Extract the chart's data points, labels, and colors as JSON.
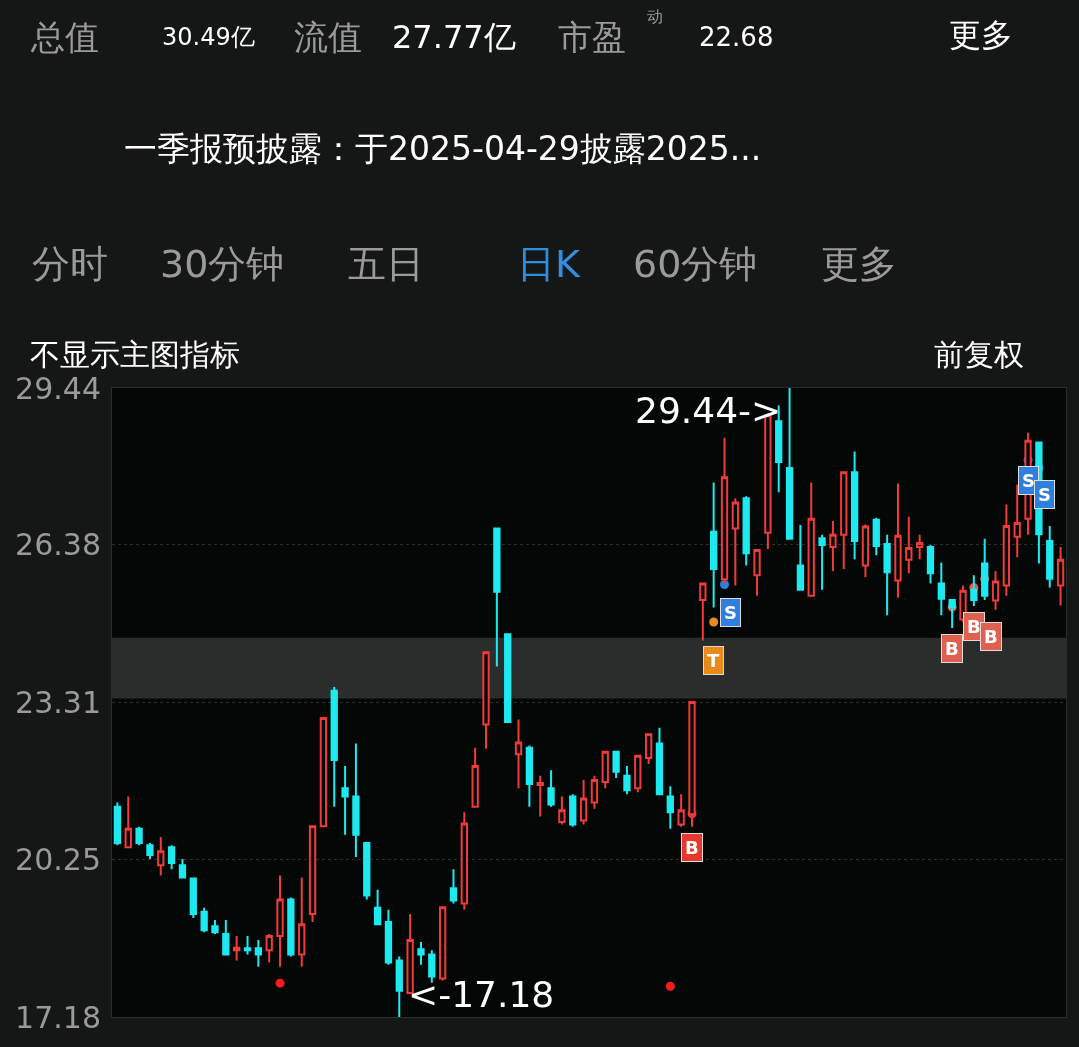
{
  "chart_data": {
    "type": "candlestick",
    "categories": [
      null,
      null,
      null,
      null,
      null,
      null,
      null,
      null,
      null,
      null,
      null,
      null,
      null,
      null,
      null,
      null,
      null,
      null,
      null,
      null,
      null,
      null,
      null,
      null,
      null,
      null,
      null,
      null,
      null,
      null,
      null,
      null,
      null,
      null,
      null,
      null,
      null,
      null,
      null,
      null,
      null,
      null,
      null,
      null,
      null,
      null,
      null,
      null,
      null,
      null,
      null,
      null,
      null,
      null,
      null,
      null,
      null,
      null,
      null,
      null,
      null,
      null,
      null,
      null,
      null,
      null,
      null,
      null,
      null,
      null,
      null,
      null,
      null,
      null,
      null,
      null,
      null,
      null,
      null,
      null,
      null,
      null,
      null,
      null,
      null,
      null,
      null,
      null
    ],
    "ohlc": [
      [
        21.28,
        21.36,
        20.53,
        20.57
      ],
      [
        20.49,
        21.48,
        20.49,
        20.85
      ],
      [
        20.85,
        20.89,
        20.53,
        20.57
      ],
      [
        20.53,
        20.57,
        20.26,
        20.34
      ],
      [
        20.14,
        20.69,
        19.94,
        20.41
      ],
      [
        20.49,
        20.53,
        20.06,
        20.18
      ],
      [
        20.14,
        20.26,
        19.9,
        19.9
      ],
      [
        19.88,
        19.88,
        19.11,
        19.19
      ],
      [
        19.23,
        19.31,
        18.83,
        18.87
      ],
      [
        18.95,
        19.07,
        18.8,
        18.83
      ],
      [
        18.8,
        19.07,
        18.4,
        18.4
      ],
      [
        18.48,
        18.76,
        18.28,
        18.53
      ],
      [
        18.52,
        18.76,
        18.4,
        18.48
      ],
      [
        18.52,
        18.68,
        18.16,
        18.4
      ],
      [
        18.48,
        18.8,
        18.24,
        18.76
      ],
      [
        18.76,
        19.94,
        18.16,
        19.47
      ],
      [
        19.47,
        19.51,
        18.36,
        18.4
      ],
      [
        18.4,
        19.9,
        18.16,
        18.99
      ],
      [
        19.19,
        20.9,
        19.03,
        20.9
      ],
      [
        20.9,
        23.01,
        20.89,
        23.01
      ],
      [
        23.54,
        23.61,
        21.28,
        22.19
      ],
      [
        21.64,
        22.07,
        20.73,
        21.48
      ],
      [
        21.48,
        22.51,
        20.3,
        20.73
      ],
      [
        20.57,
        20.57,
        19.47,
        19.55
      ],
      [
        19.31,
        19.66,
        18.99,
        18.99
      ],
      [
        19.03,
        19.27,
        18.2,
        18.24
      ],
      [
        18.28,
        18.36,
        17.18,
        17.69
      ],
      [
        17.65,
        19.19,
        17.65,
        18.68
      ],
      [
        18.5,
        18.64,
        18.2,
        18.4
      ],
      [
        18.4,
        18.48,
        17.85,
        17.97
      ],
      [
        17.93,
        19.32,
        17.89,
        19.32
      ],
      [
        19.69,
        20.06,
        19.39,
        19.45
      ],
      [
        19.39,
        21.17,
        19.27,
        20.95
      ],
      [
        21.28,
        22.43,
        21.28,
        22.07
      ],
      [
        22.88,
        24.29,
        22.41,
        24.29
      ],
      [
        26.7,
        26.7,
        24.01,
        25.47
      ],
      [
        24.64,
        24.64,
        22.93,
        22.93
      ],
      [
        22.3,
        22.98,
        21.64,
        22.53
      ],
      [
        22.43,
        22.47,
        21.28,
        21.72
      ],
      [
        21.7,
        21.88,
        21.09,
        21.74
      ],
      [
        21.64,
        21.99,
        21.28,
        21.32
      ],
      [
        20.98,
        21.48,
        20.93,
        21.21
      ],
      [
        21.48,
        21.52,
        20.89,
        20.93
      ],
      [
        21.01,
        21.8,
        20.93,
        21.44
      ],
      [
        21.36,
        21.88,
        21.24,
        21.8
      ],
      [
        21.76,
        22.35,
        21.64,
        22.35
      ],
      [
        22.35,
        22.35,
        21.84,
        21.96
      ],
      [
        21.88,
        22.07,
        21.52,
        21.6
      ],
      [
        21.64,
        22.27,
        21.56,
        22.27
      ],
      [
        22.23,
        22.69,
        22.11,
        22.69
      ],
      [
        22.51,
        22.82,
        21.52,
        21.52
      ],
      [
        21.48,
        21.68,
        20.85,
        21.17
      ],
      [
        20.93,
        21.52,
        20.89,
        21.21
      ],
      [
        21.13,
        23.32,
        20.89,
        23.32
      ],
      [
        25.31,
        25.63,
        24.52,
        25.63
      ],
      [
        26.64,
        27.6,
        25.16,
        25.91
      ],
      [
        25.71,
        28.47,
        25.63,
        27.7
      ],
      [
        26.7,
        27.29,
        25.59,
        27.21
      ],
      [
        27.29,
        27.33,
        25.98,
        26.22
      ],
      [
        25.79,
        26.3,
        25.39,
        26.28
      ],
      [
        26.62,
        28.95,
        26.3,
        28.91
      ],
      [
        28.79,
        29.1,
        27.41,
        28.0
      ],
      [
        27.88,
        29.44,
        26.5,
        26.5
      ],
      [
        25.98,
        26.77,
        25.51,
        25.51
      ],
      [
        25.39,
        27.6,
        25.39,
        26.89
      ],
      [
        26.51,
        26.58,
        25.51,
        26.38
      ],
      [
        26.34,
        26.85,
        25.87,
        26.58
      ],
      [
        26.58,
        27.8,
        25.91,
        27.8
      ],
      [
        27.8,
        28.2,
        26.1,
        26.46
      ],
      [
        25.98,
        26.78,
        25.75,
        26.74
      ],
      [
        26.87,
        26.91,
        26.18,
        26.36
      ],
      [
        26.4,
        26.58,
        25.01,
        25.85
      ],
      [
        25.69,
        27.58,
        25.35,
        26.56
      ],
      [
        26.09,
        26.93,
        25.83,
        26.32
      ],
      [
        26.34,
        26.58,
        26.1,
        26.42
      ],
      [
        26.34,
        26.38,
        25.63,
        25.83
      ],
      [
        25.63,
        26.04,
        25.01,
        25.33
      ],
      [
        25.31,
        25.31,
        24.76,
        25.16
      ],
      [
        24.93,
        25.59,
        24.88,
        25.49
      ],
      [
        25.51,
        25.79,
        25.19,
        25.31
      ],
      [
        26.02,
        26.5,
        25.31,
        25.39
      ],
      [
        25.3,
        25.87,
        25.12,
        25.67
      ],
      [
        25.59,
        27.17,
        25.39,
        26.75
      ],
      [
        26.54,
        27.56,
        26.14,
        26.81
      ],
      [
        26.89,
        28.57,
        26.58,
        28.41
      ],
      [
        28.38,
        28.38,
        26.02,
        26.59
      ],
      [
        26.46,
        26.75,
        25.55,
        25.72
      ],
      [
        25.59,
        26.34,
        25.2,
        26.09
      ]
    ],
    "colors": [
      "#1de9f0",
      "#f23a3a",
      "#1de9f0",
      "#1de9f0",
      "#f23a3a",
      "#1de9f0",
      "#1de9f0",
      "#1de9f0",
      "#1de9f0",
      "#1de9f0",
      "#1de9f0",
      "#f23a3a",
      "#1de9f0",
      "#1de9f0",
      "#f23a3a",
      "#f23a3a",
      "#1de9f0",
      "#f23a3a",
      "#f23a3a",
      "#f23a3a",
      "#1de9f0",
      "#1de9f0",
      "#1de9f0",
      "#1de9f0",
      "#1de9f0",
      "#1de9f0",
      "#1de9f0",
      "#f23a3a",
      "#1de9f0",
      "#1de9f0",
      "#f23a3a",
      "#1de9f0",
      "#f23a3a",
      "#f23a3a",
      "#f23a3a",
      "#1de9f0",
      "#1de9f0",
      "#f23a3a",
      "#1de9f0",
      "#f23a3a",
      "#1de9f0",
      "#f23a3a",
      "#1de9f0",
      "#f23a3a",
      "#f23a3a",
      "#f23a3a",
      "#1de9f0",
      "#1de9f0",
      "#f23a3a",
      "#f23a3a",
      "#1de9f0",
      "#1de9f0",
      "#f23a3a",
      "#f23a3a",
      "#f23a3a",
      "#1de9f0",
      "#f23a3a",
      "#f23a3a",
      "#1de9f0",
      "#f23a3a",
      "#f23a3a",
      "#1de9f0",
      "#1de9f0",
      "#1de9f0",
      "#f23a3a",
      "#1de9f0",
      "#f23a3a",
      "#f23a3a",
      "#1de9f0",
      "#f23a3a",
      "#1de9f0",
      "#1de9f0",
      "#f23a3a",
      "#f23a3a",
      "#f23a3a",
      "#1de9f0",
      "#1de9f0",
      "#1de9f0",
      "#f23a3a",
      "#1de9f0",
      "#1de9f0",
      "#f23a3a",
      "#f23a3a",
      "#f23a3a",
      "#f23a3a",
      "#1de9f0",
      "#1de9f0",
      "#f23a3a"
    ],
    "ylim": [
      17.18,
      29.44
    ],
    "yticks": [
      17.18,
      20.25,
      23.31,
      26.38,
      29.44
    ],
    "grid": "y",
    "bands": [
      {
        "axis": "y",
        "from": 23.39,
        "to": 24.57,
        "color": "#3a3a3a"
      }
    ],
    "series": [
      {
        "type": "scatter",
        "marker": "circle",
        "values": [
          null,
          null,
          null,
          null,
          null,
          null,
          null,
          null,
          null,
          null,
          null,
          null,
          null,
          null,
          null,
          17.84,
          null,
          null,
          null,
          null,
          null,
          null,
          null,
          null,
          null,
          null,
          null,
          null,
          null,
          null,
          null,
          null,
          null,
          null,
          null,
          null,
          null,
          null,
          null,
          null,
          null,
          null,
          null,
          null,
          null,
          null,
          null,
          null,
          null,
          null,
          null,
          17.78,
          null,
          21.14,
          null,
          24.88,
          25.61,
          null,
          null,
          null,
          null,
          null,
          null,
          null,
          null,
          null,
          null,
          null,
          null,
          null,
          null,
          null,
          null,
          null,
          null,
          null,
          null,
          25.17,
          null,
          25.55,
          25.72,
          null,
          null,
          null,
          28.04,
          27.88,
          null,
          null
        ],
        "colors": [
          null,
          null,
          null,
          null,
          null,
          null,
          null,
          null,
          null,
          null,
          null,
          null,
          null,
          null,
          null,
          "#ff1a1a",
          null,
          null,
          null,
          null,
          null,
          null,
          null,
          null,
          null,
          null,
          null,
          null,
          null,
          null,
          null,
          null,
          null,
          null,
          null,
          null,
          null,
          null,
          null,
          null,
          null,
          null,
          null,
          null,
          null,
          null,
          null,
          null,
          null,
          null,
          null,
          "#ff1a1a",
          null,
          "#e8372c",
          null,
          "#e8891a",
          "#2f7fe0",
          null,
          null,
          null,
          null,
          null,
          null,
          null,
          null,
          null,
          null,
          null,
          null,
          null,
          null,
          null,
          null,
          null,
          null,
          null,
          null,
          "#e06050",
          null,
          "#e06050",
          "#e06050",
          null,
          null,
          null,
          "#2f7fe0",
          "#2f7fe0",
          null,
          null
        ],
        "value_labels": [
          null,
          null,
          null,
          null,
          null,
          null,
          null,
          null,
          null,
          null,
          null,
          null,
          null,
          null,
          null,
          null,
          null,
          null,
          null,
          null,
          null,
          null,
          null,
          null,
          null,
          null,
          null,
          null,
          null,
          null,
          null,
          null,
          null,
          null,
          null,
          null,
          null,
          null,
          null,
          null,
          null,
          null,
          null,
          null,
          null,
          null,
          null,
          null,
          null,
          null,
          null,
          null,
          null,
          "B",
          null,
          "T",
          "S",
          null,
          null,
          null,
          null,
          null,
          null,
          null,
          null,
          null,
          null,
          null,
          null,
          null,
          null,
          null,
          null,
          null,
          null,
          null,
          null,
          "B",
          null,
          "B",
          "B",
          null,
          null,
          null,
          "S",
          "S",
          null,
          null
        ]
      }
    ],
    "annotations": [
      "总值",
      "30.49亿",
      "流值",
      "27.77亿",
      "市盈",
      "动",
      "22.68",
      "更多",
      "一季报预披露：于2025-04-29披露2025...",
      "分时",
      "30分钟",
      "五日",
      "日K",
      "60分钟",
      "更多",
      "不显示主图指标",
      "前复权",
      "29.44->",
      "<-17.18"
    ]
  }
}
